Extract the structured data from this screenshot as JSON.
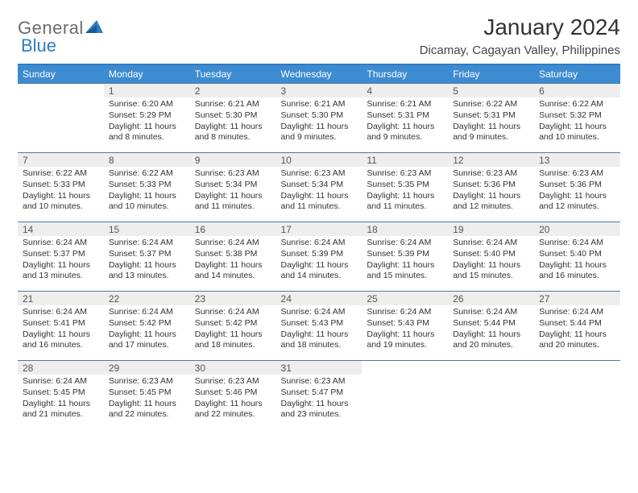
{
  "logo": {
    "text1": "General",
    "text2": "Blue",
    "text_color": "#6b6b6b",
    "blue_color": "#2f7cc4"
  },
  "title": "January 2024",
  "location": "Dicamay, Cagayan Valley, Philippines",
  "colors": {
    "header_bg": "#3d8bd0",
    "header_text": "#ffffff",
    "daynum_bg": "#eeeeee",
    "row_border": "#4a7ba8",
    "top_border": "#2f7cc4"
  },
  "weekdays": [
    "Sunday",
    "Monday",
    "Tuesday",
    "Wednesday",
    "Thursday",
    "Friday",
    "Saturday"
  ],
  "weeks": [
    [
      null,
      {
        "n": "1",
        "sr": "Sunrise: 6:20 AM",
        "ss": "Sunset: 5:29 PM",
        "d1": "Daylight: 11 hours",
        "d2": "and 8 minutes."
      },
      {
        "n": "2",
        "sr": "Sunrise: 6:21 AM",
        "ss": "Sunset: 5:30 PM",
        "d1": "Daylight: 11 hours",
        "d2": "and 8 minutes."
      },
      {
        "n": "3",
        "sr": "Sunrise: 6:21 AM",
        "ss": "Sunset: 5:30 PM",
        "d1": "Daylight: 11 hours",
        "d2": "and 9 minutes."
      },
      {
        "n": "4",
        "sr": "Sunrise: 6:21 AM",
        "ss": "Sunset: 5:31 PM",
        "d1": "Daylight: 11 hours",
        "d2": "and 9 minutes."
      },
      {
        "n": "5",
        "sr": "Sunrise: 6:22 AM",
        "ss": "Sunset: 5:31 PM",
        "d1": "Daylight: 11 hours",
        "d2": "and 9 minutes."
      },
      {
        "n": "6",
        "sr": "Sunrise: 6:22 AM",
        "ss": "Sunset: 5:32 PM",
        "d1": "Daylight: 11 hours",
        "d2": "and 10 minutes."
      }
    ],
    [
      {
        "n": "7",
        "sr": "Sunrise: 6:22 AM",
        "ss": "Sunset: 5:33 PM",
        "d1": "Daylight: 11 hours",
        "d2": "and 10 minutes."
      },
      {
        "n": "8",
        "sr": "Sunrise: 6:22 AM",
        "ss": "Sunset: 5:33 PM",
        "d1": "Daylight: 11 hours",
        "d2": "and 10 minutes."
      },
      {
        "n": "9",
        "sr": "Sunrise: 6:23 AM",
        "ss": "Sunset: 5:34 PM",
        "d1": "Daylight: 11 hours",
        "d2": "and 11 minutes."
      },
      {
        "n": "10",
        "sr": "Sunrise: 6:23 AM",
        "ss": "Sunset: 5:34 PM",
        "d1": "Daylight: 11 hours",
        "d2": "and 11 minutes."
      },
      {
        "n": "11",
        "sr": "Sunrise: 6:23 AM",
        "ss": "Sunset: 5:35 PM",
        "d1": "Daylight: 11 hours",
        "d2": "and 11 minutes."
      },
      {
        "n": "12",
        "sr": "Sunrise: 6:23 AM",
        "ss": "Sunset: 5:36 PM",
        "d1": "Daylight: 11 hours",
        "d2": "and 12 minutes."
      },
      {
        "n": "13",
        "sr": "Sunrise: 6:23 AM",
        "ss": "Sunset: 5:36 PM",
        "d1": "Daylight: 11 hours",
        "d2": "and 12 minutes."
      }
    ],
    [
      {
        "n": "14",
        "sr": "Sunrise: 6:24 AM",
        "ss": "Sunset: 5:37 PM",
        "d1": "Daylight: 11 hours",
        "d2": "and 13 minutes."
      },
      {
        "n": "15",
        "sr": "Sunrise: 6:24 AM",
        "ss": "Sunset: 5:37 PM",
        "d1": "Daylight: 11 hours",
        "d2": "and 13 minutes."
      },
      {
        "n": "16",
        "sr": "Sunrise: 6:24 AM",
        "ss": "Sunset: 5:38 PM",
        "d1": "Daylight: 11 hours",
        "d2": "and 14 minutes."
      },
      {
        "n": "17",
        "sr": "Sunrise: 6:24 AM",
        "ss": "Sunset: 5:39 PM",
        "d1": "Daylight: 11 hours",
        "d2": "and 14 minutes."
      },
      {
        "n": "18",
        "sr": "Sunrise: 6:24 AM",
        "ss": "Sunset: 5:39 PM",
        "d1": "Daylight: 11 hours",
        "d2": "and 15 minutes."
      },
      {
        "n": "19",
        "sr": "Sunrise: 6:24 AM",
        "ss": "Sunset: 5:40 PM",
        "d1": "Daylight: 11 hours",
        "d2": "and 15 minutes."
      },
      {
        "n": "20",
        "sr": "Sunrise: 6:24 AM",
        "ss": "Sunset: 5:40 PM",
        "d1": "Daylight: 11 hours",
        "d2": "and 16 minutes."
      }
    ],
    [
      {
        "n": "21",
        "sr": "Sunrise: 6:24 AM",
        "ss": "Sunset: 5:41 PM",
        "d1": "Daylight: 11 hours",
        "d2": "and 16 minutes."
      },
      {
        "n": "22",
        "sr": "Sunrise: 6:24 AM",
        "ss": "Sunset: 5:42 PM",
        "d1": "Daylight: 11 hours",
        "d2": "and 17 minutes."
      },
      {
        "n": "23",
        "sr": "Sunrise: 6:24 AM",
        "ss": "Sunset: 5:42 PM",
        "d1": "Daylight: 11 hours",
        "d2": "and 18 minutes."
      },
      {
        "n": "24",
        "sr": "Sunrise: 6:24 AM",
        "ss": "Sunset: 5:43 PM",
        "d1": "Daylight: 11 hours",
        "d2": "and 18 minutes."
      },
      {
        "n": "25",
        "sr": "Sunrise: 6:24 AM",
        "ss": "Sunset: 5:43 PM",
        "d1": "Daylight: 11 hours",
        "d2": "and 19 minutes."
      },
      {
        "n": "26",
        "sr": "Sunrise: 6:24 AM",
        "ss": "Sunset: 5:44 PM",
        "d1": "Daylight: 11 hours",
        "d2": "and 20 minutes."
      },
      {
        "n": "27",
        "sr": "Sunrise: 6:24 AM",
        "ss": "Sunset: 5:44 PM",
        "d1": "Daylight: 11 hours",
        "d2": "and 20 minutes."
      }
    ],
    [
      {
        "n": "28",
        "sr": "Sunrise: 6:24 AM",
        "ss": "Sunset: 5:45 PM",
        "d1": "Daylight: 11 hours",
        "d2": "and 21 minutes."
      },
      {
        "n": "29",
        "sr": "Sunrise: 6:23 AM",
        "ss": "Sunset: 5:45 PM",
        "d1": "Daylight: 11 hours",
        "d2": "and 22 minutes."
      },
      {
        "n": "30",
        "sr": "Sunrise: 6:23 AM",
        "ss": "Sunset: 5:46 PM",
        "d1": "Daylight: 11 hours",
        "d2": "and 22 minutes."
      },
      {
        "n": "31",
        "sr": "Sunrise: 6:23 AM",
        "ss": "Sunset: 5:47 PM",
        "d1": "Daylight: 11 hours",
        "d2": "and 23 minutes."
      },
      null,
      null,
      null
    ]
  ]
}
